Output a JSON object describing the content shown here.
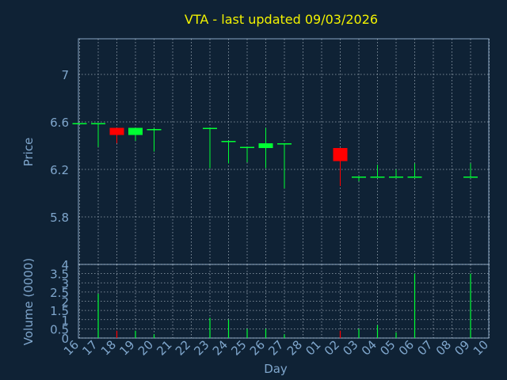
{
  "title": "VTA - last updated 09/03/2026",
  "colors": {
    "background": "#0f2235",
    "title": "#f2f200",
    "axis_text": "#7fa6cc",
    "frame": "#8aa7c4",
    "grid": "#c8d3de",
    "up": "#00ff33",
    "down": "#ff0000"
  },
  "chart_data": [
    {
      "type": "candlestick",
      "ylabel": "Price",
      "ylim": [
        5.4,
        7.3
      ],
      "yticks": [
        "5.8",
        "6.2",
        "6.6",
        "7"
      ],
      "grid": true,
      "categories": [
        "16",
        "17",
        "18",
        "19",
        "20",
        "21",
        "22",
        "23",
        "24",
        "25",
        "26",
        "27",
        "28",
        "01",
        "02",
        "03",
        "04",
        "05",
        "06",
        "07",
        "08",
        "09",
        "10"
      ],
      "candles": [
        {
          "day": "16",
          "open": 6.59,
          "high": 6.59,
          "low": 6.59,
          "close": 6.59
        },
        {
          "day": "17",
          "open": 6.59,
          "high": 6.59,
          "low": 6.39,
          "close": 6.59
        },
        {
          "day": "18",
          "open": 6.55,
          "high": 6.55,
          "low": 6.42,
          "close": 6.49
        },
        {
          "day": "19",
          "open": 6.49,
          "high": 6.55,
          "low": 6.44,
          "close": 6.55
        },
        {
          "day": "20",
          "open": 6.54,
          "high": 6.55,
          "low": 6.35,
          "close": 6.54
        },
        {
          "day": "23",
          "open": 6.55,
          "high": 6.55,
          "low": 6.21,
          "close": 6.55
        },
        {
          "day": "24",
          "open": 6.44,
          "high": 6.44,
          "low": 6.25,
          "close": 6.44
        },
        {
          "day": "25",
          "open": 6.39,
          "high": 6.39,
          "low": 6.26,
          "close": 6.39
        },
        {
          "day": "26",
          "open": 6.38,
          "high": 6.55,
          "low": 6.21,
          "close": 6.42
        },
        {
          "day": "27",
          "open": 6.42,
          "high": 6.42,
          "low": 6.04,
          "close": 6.42
        },
        {
          "day": "02",
          "open": 6.38,
          "high": 6.38,
          "low": 6.06,
          "close": 6.27
        },
        {
          "day": "03",
          "open": 6.14,
          "high": 6.14,
          "low": 6.1,
          "close": 6.14
        },
        {
          "day": "04",
          "open": 6.14,
          "high": 6.24,
          "low": 6.14,
          "close": 6.14
        },
        {
          "day": "05",
          "open": 6.14,
          "high": 6.2,
          "low": 6.14,
          "close": 6.14
        },
        {
          "day": "06",
          "open": 6.14,
          "high": 6.25,
          "low": 6.14,
          "close": 6.14
        },
        {
          "day": "09",
          "open": 6.14,
          "high": 6.25,
          "low": 6.14,
          "close": 6.14
        }
      ]
    },
    {
      "type": "bar",
      "ylabel": "Volume (0000)",
      "xlabel": "Day",
      "ylim": [
        0,
        4
      ],
      "yticks": [
        "0",
        "0.5",
        "1",
        "1.5",
        "2",
        "2.5",
        "3",
        "3.5",
        "4"
      ],
      "categories": [
        "16",
        "17",
        "18",
        "19",
        "20",
        "21",
        "22",
        "23",
        "24",
        "25",
        "26",
        "27",
        "28",
        "01",
        "02",
        "03",
        "04",
        "05",
        "06",
        "07",
        "08",
        "09",
        "10"
      ],
      "bars": [
        {
          "day": "16",
          "value": 0.0,
          "dir": "up"
        },
        {
          "day": "17",
          "value": 2.4,
          "dir": "up"
        },
        {
          "day": "18",
          "value": 0.4,
          "dir": "down"
        },
        {
          "day": "19",
          "value": 0.4,
          "dir": "up"
        },
        {
          "day": "20",
          "value": 0.2,
          "dir": "up"
        },
        {
          "day": "23",
          "value": 1.1,
          "dir": "up"
        },
        {
          "day": "24",
          "value": 1.0,
          "dir": "up"
        },
        {
          "day": "25",
          "value": 0.5,
          "dir": "up"
        },
        {
          "day": "26",
          "value": 0.5,
          "dir": "up"
        },
        {
          "day": "27",
          "value": 0.2,
          "dir": "up"
        },
        {
          "day": "02",
          "value": 0.4,
          "dir": "down"
        },
        {
          "day": "03",
          "value": 0.5,
          "dir": "up"
        },
        {
          "day": "04",
          "value": 0.7,
          "dir": "up"
        },
        {
          "day": "05",
          "value": 0.3,
          "dir": "up"
        },
        {
          "day": "06",
          "value": 3.5,
          "dir": "up"
        },
        {
          "day": "09",
          "value": 3.5,
          "dir": "up"
        }
      ]
    }
  ]
}
